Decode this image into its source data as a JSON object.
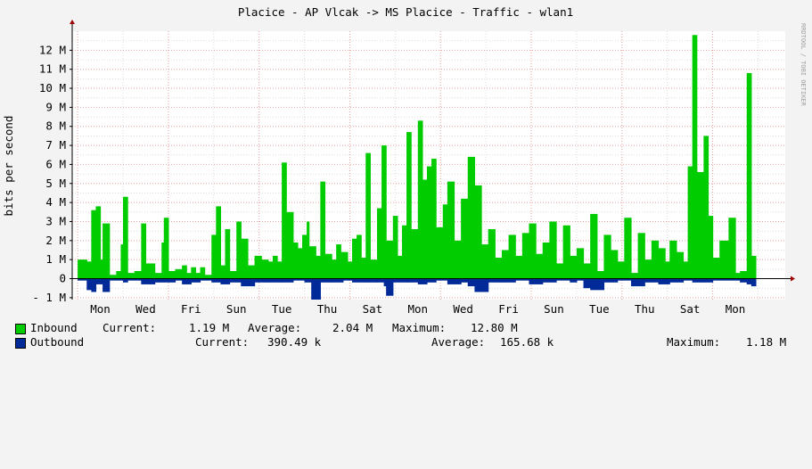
{
  "chart_data": {
    "type": "area",
    "title": "Placice - AP Vlcak -> MS Placice - Traffic - wlan1",
    "watermark": "RRDTOOL / TOBI OETIKER",
    "ylabel": "bits per second",
    "ylim": [
      -1.1,
      13.0
    ],
    "y_ticks": [
      {
        "v": -1,
        "label": "- 1 M"
      },
      {
        "v": 0,
        "label": "0"
      },
      {
        "v": 1,
        "label": "1 M"
      },
      {
        "v": 2,
        "label": "2 M"
      },
      {
        "v": 3,
        "label": "3 M"
      },
      {
        "v": 4,
        "label": "4 M"
      },
      {
        "v": 5,
        "label": "5 M"
      },
      {
        "v": 6,
        "label": "6 M"
      },
      {
        "v": 7,
        "label": "7 M"
      },
      {
        "v": 8,
        "label": "8 M"
      },
      {
        "v": 9,
        "label": "9 M"
      },
      {
        "v": 10,
        "label": "10 M"
      },
      {
        "v": 11,
        "label": "11 M"
      },
      {
        "v": 12,
        "label": "12 M"
      }
    ],
    "x_ticks": [
      {
        "day": 0.5,
        "label": "Mon"
      },
      {
        "day": 1.5,
        "label": "Wed"
      },
      {
        "day": 2.5,
        "label": "Fri"
      },
      {
        "day": 3.5,
        "label": "Sun"
      },
      {
        "day": 4.5,
        "label": "Tue"
      },
      {
        "day": 5.5,
        "label": "Thu"
      },
      {
        "day": 6.5,
        "label": "Sat"
      },
      {
        "day": 7.5,
        "label": "Mon"
      },
      {
        "day": 8.5,
        "label": "Wed"
      },
      {
        "day": 9.5,
        "label": "Fri"
      },
      {
        "day": 10.5,
        "label": "Sun"
      },
      {
        "day": 11.5,
        "label": "Tue"
      },
      {
        "day": 12.5,
        "label": "Thu"
      },
      {
        "day": 13.5,
        "label": "Sat"
      },
      {
        "day": 14.5,
        "label": "Mon"
      }
    ],
    "x_range_days": [
      -0.12,
      15.6
    ],
    "grid": true,
    "series": [
      {
        "name": "Inbound",
        "color": "#00cc00",
        "points": [
          [
            0.0,
            1.0
          ],
          [
            0.2,
            0.9
          ],
          [
            0.3,
            3.6
          ],
          [
            0.4,
            3.8
          ],
          [
            0.5,
            1.0
          ],
          [
            0.55,
            2.9
          ],
          [
            0.7,
            0.2
          ],
          [
            0.85,
            0.4
          ],
          [
            0.95,
            1.8
          ],
          [
            1.0,
            4.3
          ],
          [
            1.1,
            0.3
          ],
          [
            1.25,
            0.4
          ],
          [
            1.4,
            2.9
          ],
          [
            1.5,
            0.8
          ],
          [
            1.7,
            0.3
          ],
          [
            1.85,
            1.9
          ],
          [
            1.9,
            3.2
          ],
          [
            2.0,
            0.4
          ],
          [
            2.15,
            0.5
          ],
          [
            2.3,
            0.7
          ],
          [
            2.4,
            0.3
          ],
          [
            2.5,
            0.6
          ],
          [
            2.6,
            0.3
          ],
          [
            2.7,
            0.6
          ],
          [
            2.8,
            0.2
          ],
          [
            2.95,
            2.3
          ],
          [
            3.05,
            3.8
          ],
          [
            3.15,
            0.7
          ],
          [
            3.25,
            2.6
          ],
          [
            3.35,
            0.4
          ],
          [
            3.5,
            3.0
          ],
          [
            3.6,
            2.1
          ],
          [
            3.75,
            0.7
          ],
          [
            3.9,
            1.2
          ],
          [
            4.05,
            1.0
          ],
          [
            4.2,
            0.9
          ],
          [
            4.3,
            1.2
          ],
          [
            4.4,
            0.9
          ],
          [
            4.5,
            6.1
          ],
          [
            4.6,
            3.5
          ],
          [
            4.75,
            1.9
          ],
          [
            4.85,
            1.6
          ],
          [
            4.95,
            2.3
          ],
          [
            5.05,
            3.0
          ],
          [
            5.1,
            1.7
          ],
          [
            5.25,
            1.2
          ],
          [
            5.35,
            5.1
          ],
          [
            5.45,
            1.3
          ],
          [
            5.6,
            1.0
          ],
          [
            5.7,
            1.8
          ],
          [
            5.8,
            1.4
          ],
          [
            5.95,
            0.9
          ],
          [
            6.05,
            2.1
          ],
          [
            6.15,
            2.3
          ],
          [
            6.25,
            1.1
          ],
          [
            6.35,
            6.6
          ],
          [
            6.45,
            1.0
          ],
          [
            6.6,
            3.7
          ],
          [
            6.7,
            7.0
          ],
          [
            6.8,
            2.0
          ],
          [
            6.95,
            3.3
          ],
          [
            7.05,
            1.2
          ],
          [
            7.15,
            2.8
          ],
          [
            7.25,
            7.7
          ],
          [
            7.35,
            2.6
          ],
          [
            7.5,
            8.3
          ],
          [
            7.6,
            5.2
          ],
          [
            7.7,
            5.9
          ],
          [
            7.8,
            6.3
          ],
          [
            7.9,
            2.7
          ],
          [
            8.05,
            3.9
          ],
          [
            8.15,
            5.1
          ],
          [
            8.3,
            2.0
          ],
          [
            8.45,
            4.2
          ],
          [
            8.6,
            6.4
          ],
          [
            8.75,
            4.9
          ],
          [
            8.9,
            1.8
          ],
          [
            9.05,
            2.6
          ],
          [
            9.2,
            1.1
          ],
          [
            9.35,
            1.5
          ],
          [
            9.5,
            2.3
          ],
          [
            9.65,
            1.2
          ],
          [
            9.8,
            2.4
          ],
          [
            9.95,
            2.9
          ],
          [
            10.1,
            1.3
          ],
          [
            10.25,
            1.9
          ],
          [
            10.4,
            3.0
          ],
          [
            10.55,
            0.8
          ],
          [
            10.7,
            2.8
          ],
          [
            10.85,
            1.2
          ],
          [
            11.0,
            1.6
          ],
          [
            11.15,
            0.8
          ],
          [
            11.3,
            3.4
          ],
          [
            11.45,
            0.4
          ],
          [
            11.6,
            2.3
          ],
          [
            11.75,
            1.5
          ],
          [
            11.9,
            0.9
          ],
          [
            12.05,
            3.2
          ],
          [
            12.2,
            0.3
          ],
          [
            12.35,
            2.4
          ],
          [
            12.5,
            1.0
          ],
          [
            12.65,
            2.0
          ],
          [
            12.8,
            1.6
          ],
          [
            12.95,
            0.9
          ],
          [
            13.05,
            2.0
          ],
          [
            13.2,
            1.4
          ],
          [
            13.35,
            0.9
          ],
          [
            13.45,
            5.9
          ],
          [
            13.55,
            12.8
          ],
          [
            13.65,
            5.6
          ],
          [
            13.8,
            7.5
          ],
          [
            13.9,
            3.3
          ],
          [
            14.0,
            1.1
          ],
          [
            14.15,
            2.0
          ],
          [
            14.35,
            3.2
          ],
          [
            14.5,
            0.3
          ],
          [
            14.6,
            0.4
          ],
          [
            14.75,
            10.8
          ],
          [
            14.85,
            1.2
          ]
        ]
      },
      {
        "name": "Outbound",
        "color": "#002a97",
        "points": [
          [
            0.0,
            -0.1
          ],
          [
            0.2,
            -0.6
          ],
          [
            0.3,
            -0.7
          ],
          [
            0.4,
            -0.3
          ],
          [
            0.55,
            -0.7
          ],
          [
            0.7,
            -0.1
          ],
          [
            0.85,
            -0.1
          ],
          [
            1.0,
            -0.2
          ],
          [
            1.1,
            -0.1
          ],
          [
            1.25,
            -0.1
          ],
          [
            1.4,
            -0.3
          ],
          [
            1.7,
            -0.2
          ],
          [
            1.9,
            -0.2
          ],
          [
            2.15,
            -0.1
          ],
          [
            2.3,
            -0.3
          ],
          [
            2.5,
            -0.2
          ],
          [
            2.7,
            -0.1
          ],
          [
            2.95,
            -0.2
          ],
          [
            3.15,
            -0.3
          ],
          [
            3.35,
            -0.2
          ],
          [
            3.6,
            -0.4
          ],
          [
            3.9,
            -0.2
          ],
          [
            4.2,
            -0.2
          ],
          [
            4.5,
            -0.2
          ],
          [
            4.75,
            -0.1
          ],
          [
            5.0,
            -0.2
          ],
          [
            5.15,
            -1.1
          ],
          [
            5.35,
            -0.2
          ],
          [
            5.6,
            -0.2
          ],
          [
            5.85,
            -0.1
          ],
          [
            6.05,
            -0.2
          ],
          [
            6.35,
            -0.2
          ],
          [
            6.6,
            -0.2
          ],
          [
            6.75,
            -0.4
          ],
          [
            6.8,
            -0.9
          ],
          [
            6.95,
            -0.2
          ],
          [
            7.25,
            -0.2
          ],
          [
            7.5,
            -0.3
          ],
          [
            7.7,
            -0.2
          ],
          [
            7.9,
            -0.1
          ],
          [
            8.15,
            -0.3
          ],
          [
            8.45,
            -0.2
          ],
          [
            8.6,
            -0.4
          ],
          [
            8.75,
            -0.7
          ],
          [
            9.05,
            -0.2
          ],
          [
            9.35,
            -0.2
          ],
          [
            9.65,
            -0.1
          ],
          [
            9.95,
            -0.3
          ],
          [
            10.25,
            -0.2
          ],
          [
            10.55,
            -0.1
          ],
          [
            10.85,
            -0.2
          ],
          [
            11.0,
            -0.1
          ],
          [
            11.15,
            -0.5
          ],
          [
            11.3,
            -0.6
          ],
          [
            11.6,
            -0.2
          ],
          [
            11.9,
            -0.1
          ],
          [
            12.2,
            -0.4
          ],
          [
            12.5,
            -0.2
          ],
          [
            12.8,
            -0.3
          ],
          [
            13.05,
            -0.2
          ],
          [
            13.35,
            -0.1
          ],
          [
            13.55,
            -0.2
          ],
          [
            13.8,
            -0.2
          ],
          [
            14.0,
            -0.1
          ],
          [
            14.35,
            -0.1
          ],
          [
            14.6,
            -0.2
          ],
          [
            14.75,
            -0.3
          ],
          [
            14.85,
            -0.4
          ]
        ]
      }
    ],
    "legend": {
      "inbound": {
        "name": "Inbound",
        "current_label": "Current:",
        "current": "1.19 M",
        "average_label": "Average:",
        "average": "2.04 M",
        "maximum_label": "Maximum:",
        "maximum": "12.80 M"
      },
      "outbound": {
        "name": "Outbound",
        "current_label": "Current:",
        "current": "390.49 k",
        "average_label": "Average:",
        "average": "165.68 k",
        "maximum_label": "Maximum:",
        "maximum": "1.18 M"
      }
    }
  }
}
